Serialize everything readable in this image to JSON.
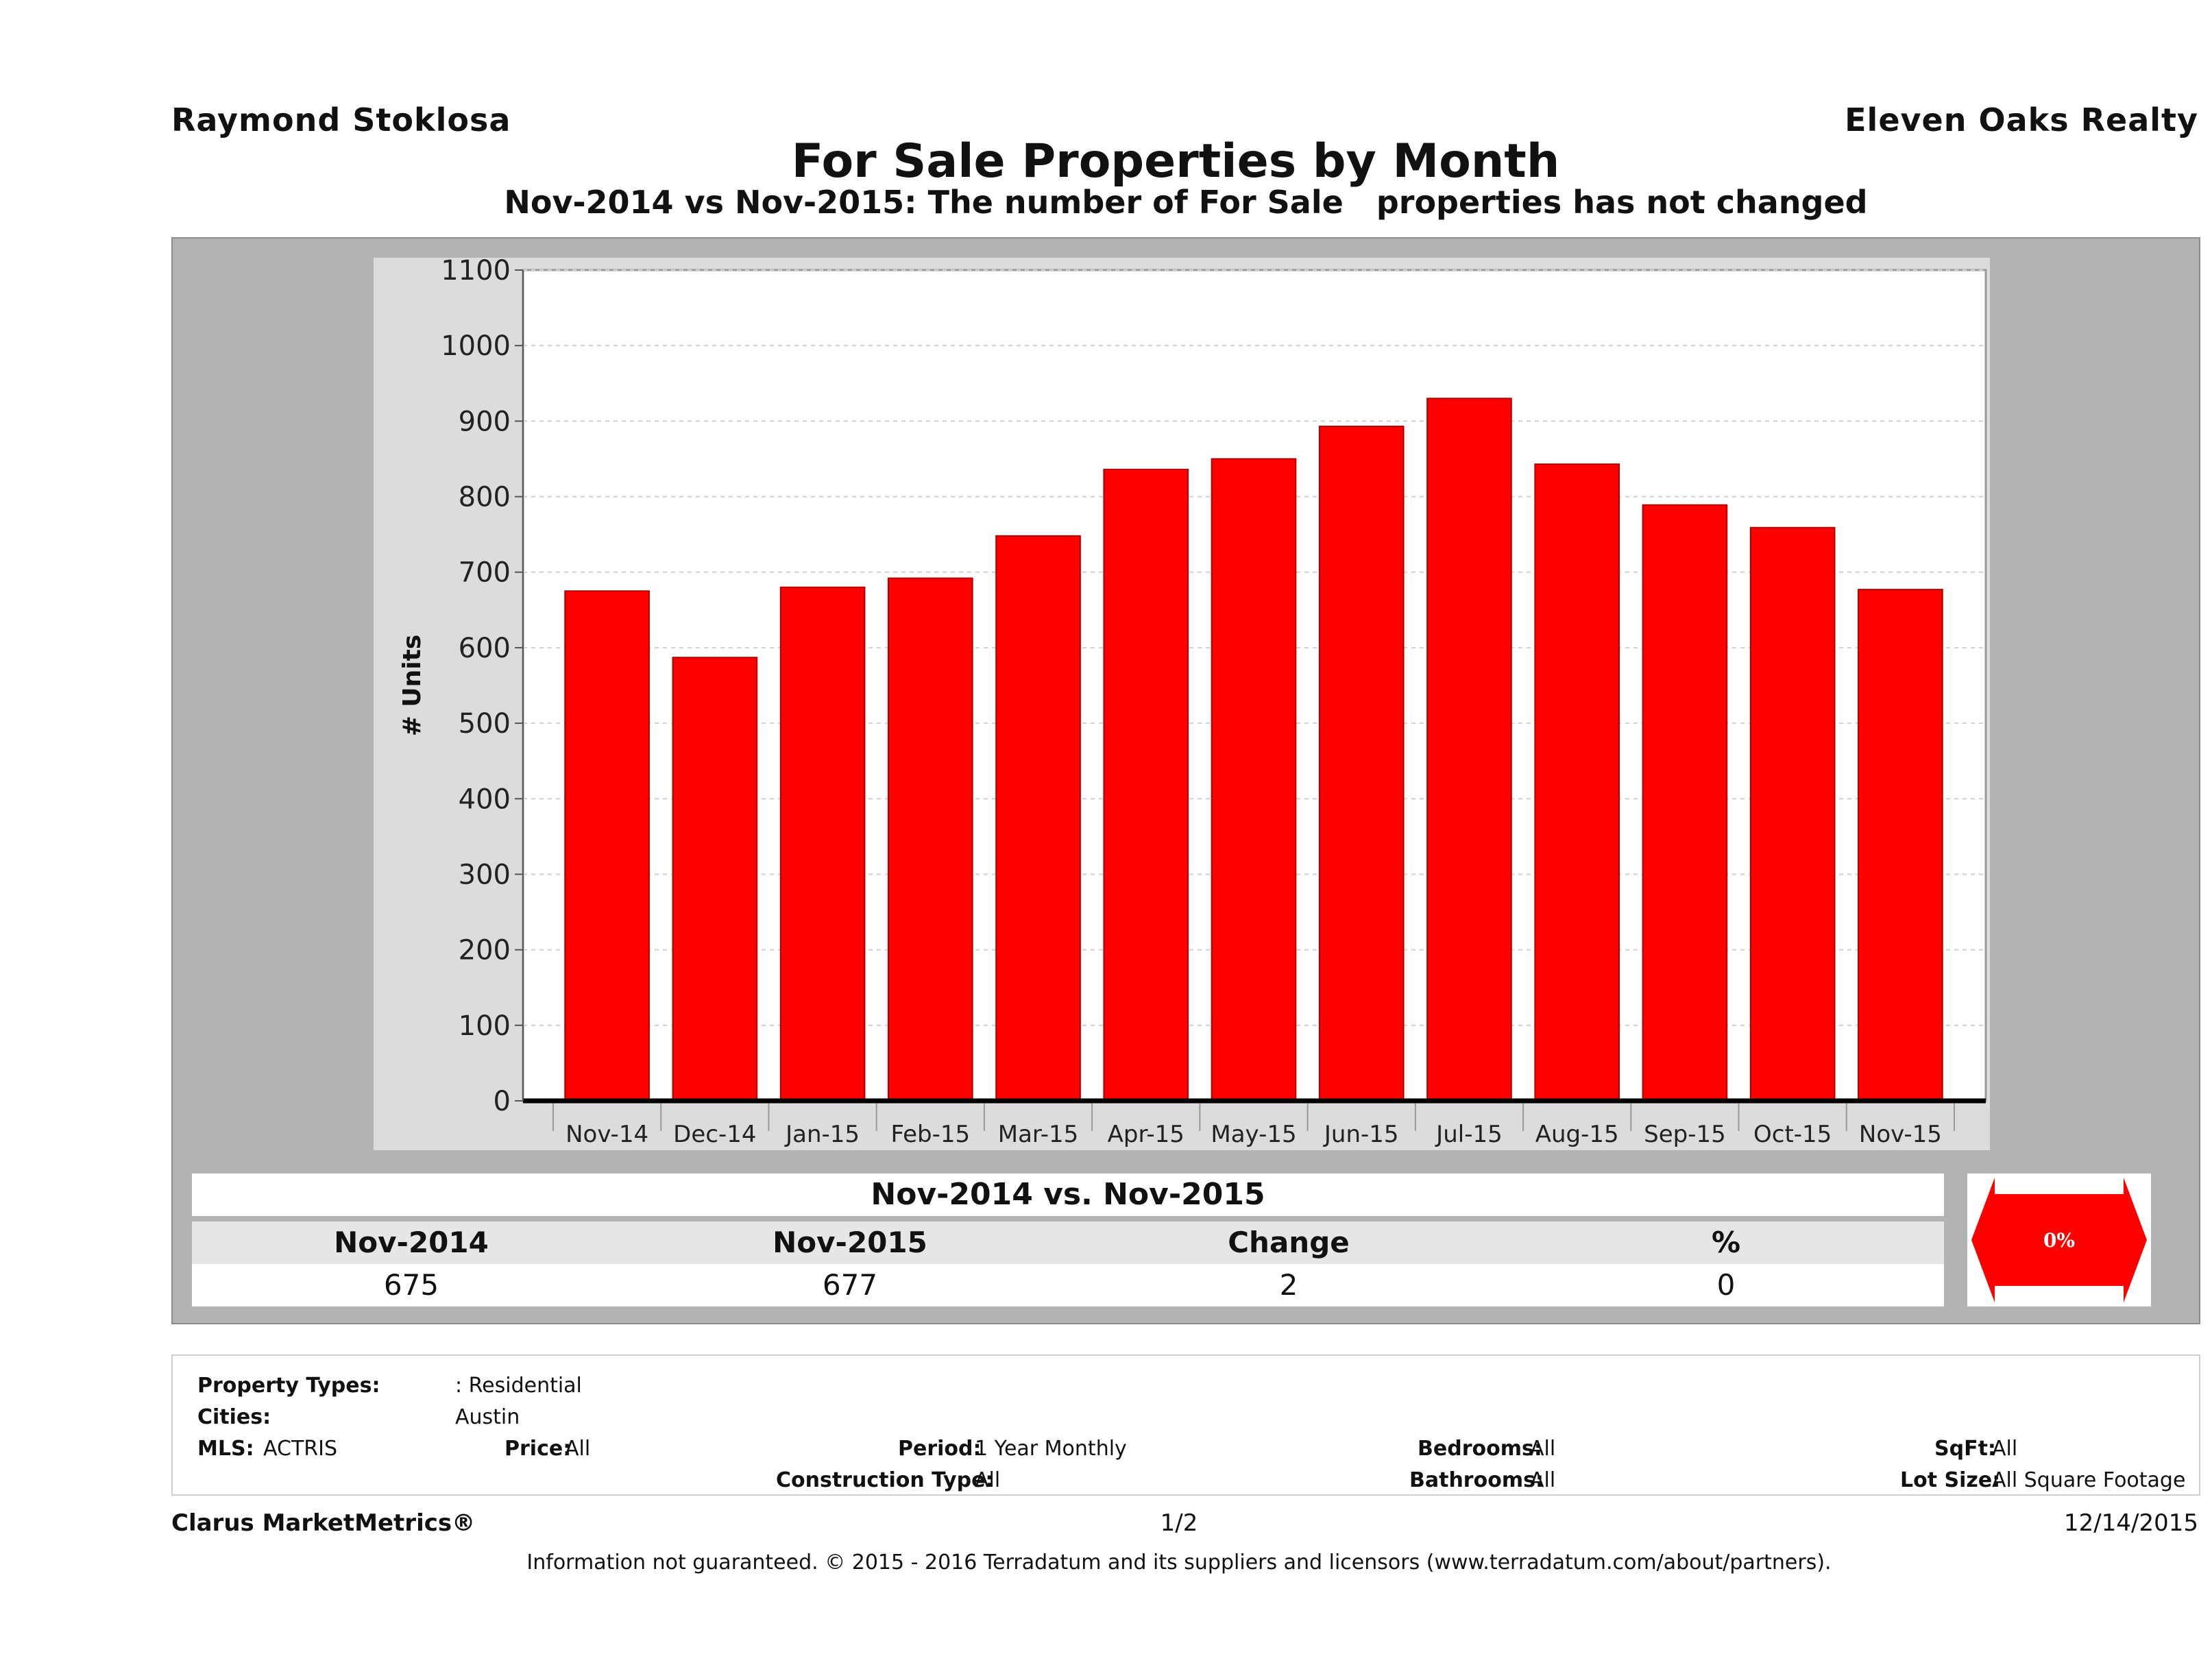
{
  "header": {
    "agent_name": "Raymond Stoklosa",
    "brokerage": "Eleven Oaks Realty",
    "title": "For Sale Properties by Month",
    "subtitle": "Nov-2014 vs Nov-2015: The number of For Sale   properties has not changed"
  },
  "chart_data": {
    "type": "bar",
    "title": "For Sale Properties by Month",
    "ylabel": "# Units",
    "xlabel": "",
    "categories": [
      "Nov-14",
      "Dec-14",
      "Jan-15",
      "Feb-15",
      "Mar-15",
      "Apr-15",
      "May-15",
      "Jun-15",
      "Jul-15",
      "Aug-15",
      "Sep-15",
      "Oct-15",
      "Nov-15"
    ],
    "values": [
      675,
      587,
      680,
      692,
      748,
      836,
      850,
      893,
      930,
      843,
      789,
      759,
      677
    ],
    "ylim": [
      0,
      1100
    ],
    "yticks": [
      0,
      100,
      200,
      300,
      400,
      500,
      600,
      700,
      800,
      900,
      1000,
      1100
    ],
    "grid": true,
    "bar_color": "#ff0000"
  },
  "summary": {
    "heading": "Nov-2014 vs. Nov-2015",
    "col1_label": "Nov-2014",
    "col2_label": "Nov-2015",
    "col3_label": "Change",
    "col4_label": "%",
    "col1_value": "675",
    "col2_value": "677",
    "col3_value": "2",
    "col4_value": "0",
    "indicator": "0%",
    "indicator_color": "#ff0000"
  },
  "filters": {
    "property_types_label": "Property Types:",
    "property_types_value": ": Residential",
    "cities_label": "Cities:",
    "cities_value": "Austin",
    "mls_label": "MLS:",
    "mls_value": "ACTRIS",
    "price_label": "Price:",
    "price_value": "All",
    "period_label": "Period:",
    "period_value": "1 Year Monthly",
    "construction_label": "Construction Type:",
    "construction_value": "All",
    "bedrooms_label": "Bedrooms:",
    "bedrooms_value": "All",
    "bathrooms_label": "Bathrooms:",
    "bathrooms_value": "All",
    "sqft_label": "SqFt:",
    "sqft_value": "All",
    "lotsize_label": "Lot Size:",
    "lotsize_value": "All Square Footage"
  },
  "footer": {
    "brand": "Clarus MarketMetrics®",
    "page": "1/2",
    "date": "12/14/2015",
    "disclaimer": "Information not guaranteed. © 2015 - 2016 Terradatum and its suppliers and licensors (www.terradatum.com/about/partners)."
  }
}
